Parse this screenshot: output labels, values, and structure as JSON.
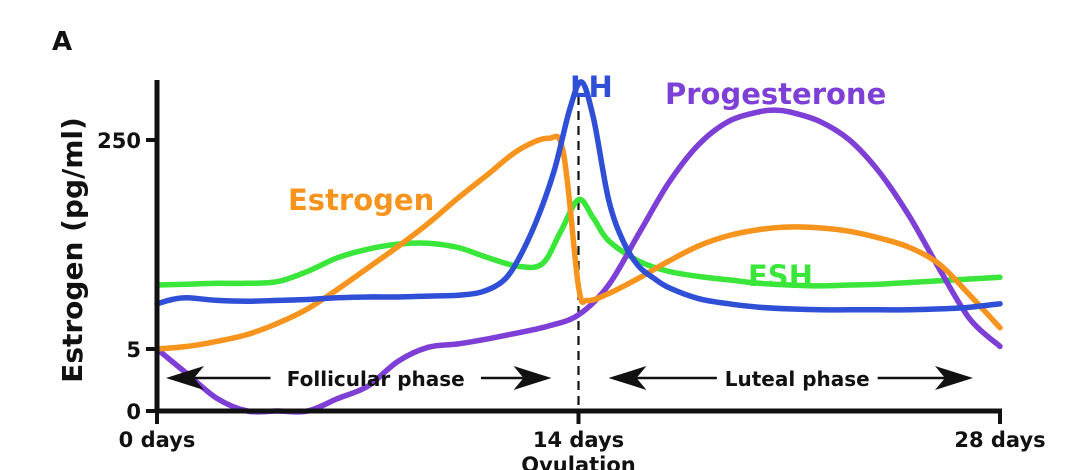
{
  "chart_data": {
    "type": "line",
    "panel_label": "A",
    "ylabel": "Estrogen (pg/ml)",
    "xlabel": "",
    "x_ticks": [
      {
        "x": 0,
        "label": "0 days"
      },
      {
        "x": 14,
        "label": "14 days"
      },
      {
        "x": 28,
        "label": "28 days"
      }
    ],
    "x_sublabel": {
      "x": 14,
      "label": "Ovulation"
    },
    "y_ticks": [
      {
        "y": 0,
        "label": "0"
      },
      {
        "y": 5,
        "label": "5"
      },
      {
        "y": 250,
        "label": "250"
      }
    ],
    "xlim": [
      0,
      28
    ],
    "phases": [
      {
        "label": "Follicular phase",
        "from": 0,
        "to": 14
      },
      {
        "label": "Luteal phase",
        "from": 14,
        "to": 28
      }
    ],
    "ovulation_line": {
      "x": 14,
      "style": "dashed"
    },
    "series": [
      {
        "name": "Estrogen",
        "color": "#f7941d",
        "x": [
          0,
          1,
          2,
          3,
          4,
          5,
          6,
          7,
          8,
          9,
          10,
          11,
          12,
          13,
          13.5,
          14,
          14.3,
          15,
          16,
          17,
          18,
          19,
          20,
          21,
          22,
          23,
          24,
          25,
          26,
          27,
          28
        ],
        "y": [
          5,
          8,
          14,
          22,
          35,
          52,
          75,
          100,
          125,
          152,
          182,
          210,
          238,
          252,
          235,
          78,
          62,
          70,
          88,
          108,
          126,
          138,
          145,
          148,
          147,
          143,
          135,
          124,
          104,
          68,
          30
        ]
      },
      {
        "name": "LH",
        "color": "#2e4fd6",
        "x": [
          0,
          0.5,
          1,
          2,
          3,
          4,
          5,
          6,
          7,
          8,
          9,
          10,
          10.8,
          11.5,
          12,
          12.6,
          13.2,
          13.7,
          14.1,
          14.5,
          15,
          15.5,
          16,
          16.5,
          17,
          18,
          19,
          20,
          21,
          22,
          23,
          24,
          25,
          26,
          27,
          28
        ],
        "y": [
          58,
          63,
          65,
          62,
          61,
          62,
          63,
          65,
          66,
          66,
          67,
          68,
          72,
          85,
          110,
          155,
          215,
          285,
          318,
          275,
          180,
          130,
          102,
          88,
          77,
          64,
          58,
          54,
          52,
          51,
          51,
          51,
          51,
          52,
          54,
          58
        ],
        "label_position": "above-peak"
      },
      {
        "name": "FSH",
        "color": "#39e639",
        "x": [
          0,
          1,
          2,
          3,
          4,
          5,
          6,
          7,
          8,
          9,
          10,
          11,
          12,
          12.8,
          13.4,
          14,
          14.5,
          15,
          16,
          17,
          18,
          19,
          20,
          21,
          22,
          23,
          24,
          25,
          26,
          27,
          28
        ],
        "y": [
          80,
          81,
          82,
          82,
          84,
          96,
          112,
          122,
          128,
          129,
          124,
          112,
          102,
          105,
          142,
          180,
          158,
          132,
          108,
          96,
          90,
          86,
          82,
          80,
          79,
          80,
          81,
          83,
          85,
          87,
          89
        ]
      },
      {
        "name": "Progesterone",
        "color": "#7d3fd6",
        "x": [
          0,
          1,
          2,
          3,
          4,
          5,
          6,
          7,
          8,
          9,
          10,
          11,
          12,
          13,
          14,
          15,
          16,
          17,
          18,
          19,
          20,
          20.5,
          21,
          22,
          23,
          24,
          25,
          26,
          27,
          28
        ],
        "y": [
          5,
          3,
          1,
          0,
          0,
          0,
          1,
          2,
          4,
          7,
          11,
          17,
          24,
          32,
          45,
          80,
          140,
          200,
          245,
          272,
          283,
          285,
          283,
          272,
          250,
          212,
          160,
          98,
          40,
          8
        ],
        "label_position": "above"
      }
    ]
  }
}
